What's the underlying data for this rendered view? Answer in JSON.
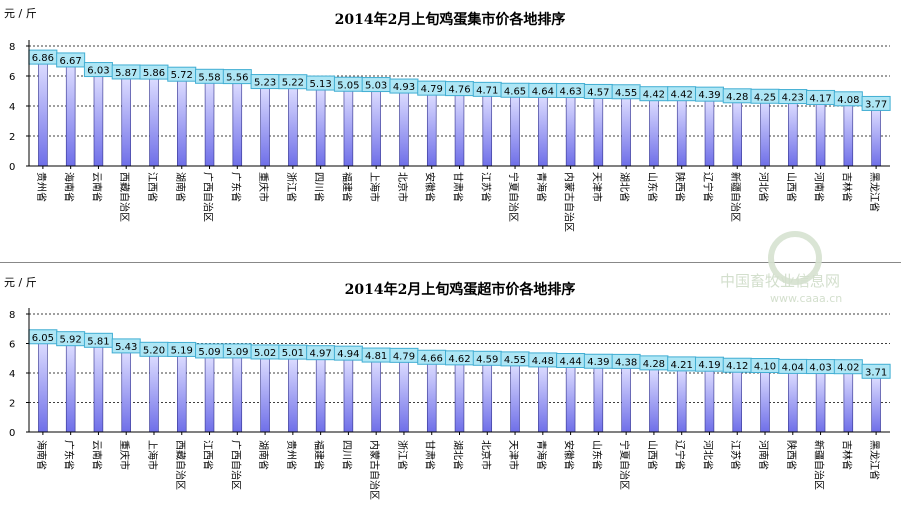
{
  "colors": {
    "bar_top": "#dcdcff",
    "bar_bottom": "#6f6fe8",
    "bar_edge": "#30308c",
    "label_fill": "#aee6f5",
    "label_stroke": "#42aed3",
    "grid": "#000000",
    "axis": "#000000",
    "watermark": "#cfdcc8"
  },
  "watermark": {
    "text": "中国畜牧业信息网",
    "url": "www.caaa.cn"
  },
  "chart_data": [
    {
      "type": "bar",
      "title": "2014年2月上旬鸡蛋集市价各地排序",
      "ylabel": "元 / 斤",
      "ylim": [
        0,
        8
      ],
      "yticks": [
        "0",
        "2",
        "4",
        "6",
        "8"
      ],
      "grid": true,
      "categories": [
        "贵州省",
        "海南省",
        "云南省",
        "西藏自治区",
        "江西省",
        "湖南省",
        "广西自治区",
        "广东省",
        "重庆市",
        "浙江省",
        "四川省",
        "福建省",
        "上海市",
        "北京市",
        "安徽省",
        "甘肃省",
        "江苏省",
        "宁夏自治区",
        "青海省",
        "内蒙古自治区",
        "天津市",
        "湖北省",
        "山东省",
        "陕西省",
        "辽宁省",
        "新疆自治区",
        "河北省",
        "山西省",
        "河南省",
        "吉林省",
        "黑龙江省"
      ],
      "values": [
        6.86,
        6.67,
        6.03,
        5.87,
        5.86,
        5.72,
        5.58,
        5.56,
        5.23,
        5.22,
        5.13,
        5.05,
        5.03,
        4.93,
        4.79,
        4.76,
        4.71,
        4.65,
        4.64,
        4.63,
        4.57,
        4.55,
        4.42,
        4.42,
        4.39,
        4.28,
        4.25,
        4.23,
        4.17,
        4.08,
        3.77
      ],
      "labels": [
        "6.86",
        "6.67",
        "6.03",
        "5.87",
        "5.86",
        "5.72",
        "5.58",
        "5.56",
        "5.23",
        "5.22",
        "5.13",
        "5.05",
        "5.03",
        "4.93",
        "4.79",
        "4.76",
        "4.71",
        "4.65",
        "4.64",
        "4.63",
        "4.57",
        "4.55",
        "4.42",
        "4.42",
        "4.39",
        "4.28",
        "4.25",
        "4.23",
        "4.17",
        "4.08",
        "3.77"
      ]
    },
    {
      "type": "bar",
      "title": "2014年2月上旬鸡蛋超市价各地排序",
      "ylabel": "元 / 斤",
      "ylim": [
        0,
        8
      ],
      "yticks": [
        "0",
        "2",
        "4",
        "6",
        "8"
      ],
      "grid": true,
      "categories": [
        "海南省",
        "广东省",
        "云南省",
        "重庆市",
        "上海市",
        "西藏自治区",
        "江西省",
        "广西自治区",
        "湖南省",
        "贵州省",
        "福建省",
        "四川省",
        "内蒙古自治区",
        "浙江省",
        "甘肃省",
        "湖北省",
        "北京市",
        "天津市",
        "青海省",
        "安徽省",
        "山东省",
        "宁夏自治区",
        "山西省",
        "辽宁省",
        "河北省",
        "江苏省",
        "河南省",
        "陕西省",
        "新疆自治区",
        "吉林省",
        "黑龙江省"
      ],
      "values": [
        6.05,
        5.92,
        5.81,
        5.43,
        5.2,
        5.19,
        5.09,
        5.09,
        5.02,
        5.01,
        4.97,
        4.94,
        4.81,
        4.79,
        4.66,
        4.62,
        4.59,
        4.55,
        4.48,
        4.44,
        4.39,
        4.38,
        4.28,
        4.21,
        4.19,
        4.12,
        4.1,
        4.04,
        4.03,
        4.02,
        3.71
      ],
      "labels": [
        "6.05",
        "5.92",
        "5.81",
        "5.43",
        "5.20",
        "5.19",
        "5.09",
        "5.09",
        "5.02",
        "5.01",
        "4.97",
        "4.94",
        "4.81",
        "4.79",
        "4.66",
        "4.62",
        "4.59",
        "4.55",
        "4.48",
        "4.44",
        "4.39",
        "4.38",
        "4.28",
        "4.21",
        "4.19",
        "4.12",
        "4.10",
        "4.04",
        "4.03",
        "4.02",
        "3.71"
      ]
    }
  ]
}
